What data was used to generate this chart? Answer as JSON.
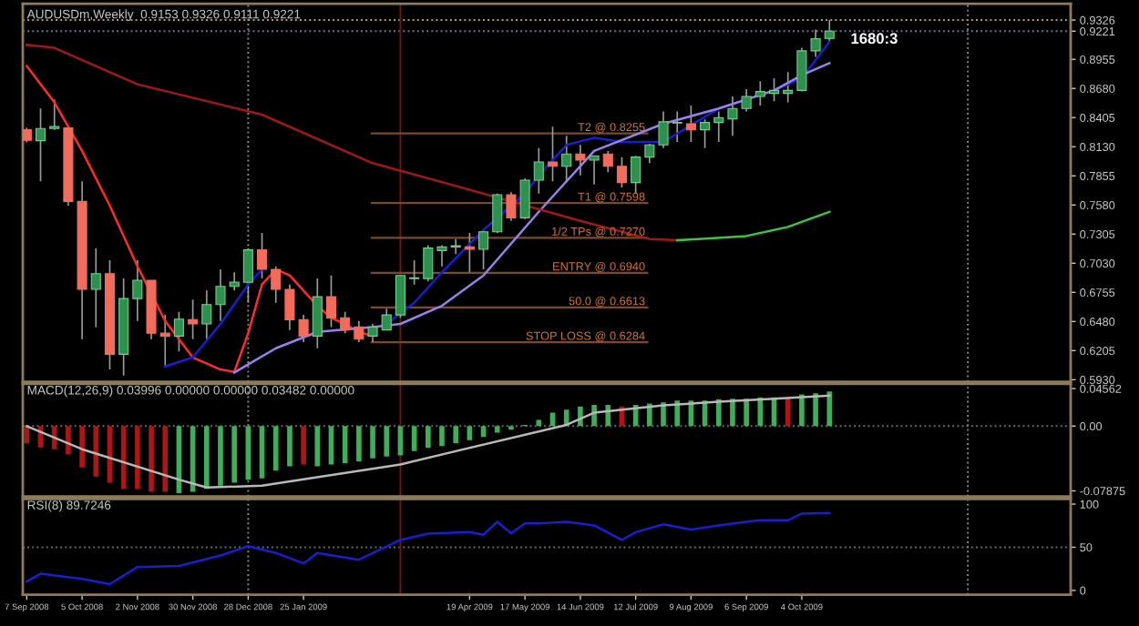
{
  "chart_data": [
    {
      "type": "candlestick",
      "title": "AUDUSDm,Weekly  0.9153 0.9326 0.9111 0.9221",
      "x": [
        "2008-09-07",
        "2008-09-14",
        "2008-09-21",
        "2008-09-28",
        "2008-10-05",
        "2008-10-12",
        "2008-10-19",
        "2008-10-26",
        "2008-11-02",
        "2008-11-09",
        "2008-11-16",
        "2008-11-23",
        "2008-11-30",
        "2008-12-07",
        "2008-12-14",
        "2008-12-21",
        "2008-12-28",
        "2009-01-04",
        "2009-01-11",
        "2009-01-18",
        "2009-01-25",
        "2009-02-01",
        "2009-02-08",
        "2009-02-15",
        "2009-02-22",
        "2009-03-01",
        "2009-03-08",
        "2009-03-15",
        "2009-03-22",
        "2009-03-29",
        "2009-04-05",
        "2009-04-12",
        "2009-04-19",
        "2009-04-26",
        "2009-05-03",
        "2009-05-10",
        "2009-05-17",
        "2009-05-24",
        "2009-05-31",
        "2009-06-07",
        "2009-06-14",
        "2009-06-21",
        "2009-06-28",
        "2009-07-05",
        "2009-07-12",
        "2009-07-19",
        "2009-07-26",
        "2009-08-02",
        "2009-08-09",
        "2009-08-16",
        "2009-08-23",
        "2009-08-30",
        "2009-09-06",
        "2009-09-13",
        "2009-09-20",
        "2009-09-27",
        "2009-10-04",
        "2009-10-11",
        "2009-10-18"
      ],
      "ohlc": [
        [
          0.829,
          0.831,
          0.817,
          0.819
        ],
        [
          0.8187,
          0.8491,
          0.7803,
          0.8302
        ],
        [
          0.8302,
          0.8577,
          0.829,
          0.832
        ],
        [
          0.8307,
          0.8307,
          0.7574,
          0.7614
        ],
        [
          0.7614,
          0.7803,
          0.6313,
          0.6783
        ],
        [
          0.6783,
          0.7173,
          0.6428,
          0.6932
        ],
        [
          0.6932,
          0.7058,
          0.6027,
          0.617
        ],
        [
          0.617,
          0.6886,
          0.5969,
          0.6697
        ],
        [
          0.6697,
          0.7058,
          0.6485,
          0.6869
        ],
        [
          0.6869,
          0.6869,
          0.6313,
          0.637
        ],
        [
          0.637,
          0.6542,
          0.6055,
          0.6342
        ],
        [
          0.6342,
          0.6571,
          0.6198,
          0.6502
        ],
        [
          0.6497,
          0.6686,
          0.6313,
          0.6457
        ],
        [
          0.6457,
          0.6772,
          0.6313,
          0.664
        ],
        [
          0.664,
          0.6972,
          0.6485,
          0.6812
        ],
        [
          0.6812,
          0.6944,
          0.6772,
          0.6852
        ],
        [
          0.685,
          0.7173,
          0.6657,
          0.7156
        ],
        [
          0.7156,
          0.7316,
          0.6886,
          0.6972
        ],
        [
          0.6972,
          0.7001,
          0.6657,
          0.6783
        ],
        [
          0.6783,
          0.6829,
          0.6399,
          0.6497
        ],
        [
          0.6497,
          0.6542,
          0.6285,
          0.6342
        ],
        [
          0.6342,
          0.6886,
          0.6227,
          0.6714
        ],
        [
          0.6714,
          0.6915,
          0.6428,
          0.6514
        ],
        [
          0.6514,
          0.6571,
          0.637,
          0.64
        ],
        [
          0.6428,
          0.6485,
          0.6285,
          0.6313
        ],
        [
          0.6342,
          0.6457,
          0.6285,
          0.6428
        ],
        [
          0.64,
          0.66,
          0.64,
          0.6542
        ],
        [
          0.6542,
          0.6915,
          0.6514,
          0.6915
        ],
        [
          0.6886,
          0.7058,
          0.6829,
          0.6892
        ],
        [
          0.6886,
          0.7201,
          0.6858,
          0.7173
        ],
        [
          0.715,
          0.7201,
          0.7001,
          0.7184
        ],
        [
          0.7184,
          0.7259,
          0.7116,
          0.7196
        ],
        [
          0.7184,
          0.7316,
          0.6944,
          0.7161
        ],
        [
          0.7161,
          0.7345,
          0.6972,
          0.7327
        ],
        [
          0.7327,
          0.7688,
          0.7316,
          0.7677
        ],
        [
          0.7677,
          0.77,
          0.743,
          0.7459
        ],
        [
          0.7459,
          0.7832,
          0.7448,
          0.7814
        ],
        [
          0.7814,
          0.8118,
          0.7688,
          0.7986
        ],
        [
          0.7986,
          0.8319,
          0.7803,
          0.7946
        ],
        [
          0.7946,
          0.8233,
          0.7803,
          0.8061
        ],
        [
          0.8061,
          0.8147,
          0.786,
          0.8004
        ],
        [
          0.8004,
          0.8044,
          0.7774,
          0.8044
        ],
        [
          0.8061,
          0.809,
          0.7889,
          0.7946
        ],
        [
          0.7946,
          0.8032,
          0.7746,
          0.7792
        ],
        [
          0.7792,
          0.8044,
          0.7688,
          0.8032
        ],
        [
          0.8032,
          0.8158,
          0.7975,
          0.8147
        ],
        [
          0.8147,
          0.8462,
          0.8118,
          0.8365
        ],
        [
          0.8353,
          0.8462,
          0.8176,
          0.8359
        ],
        [
          0.8347,
          0.8519,
          0.8176,
          0.829
        ],
        [
          0.829,
          0.8387,
          0.8118,
          0.8359
        ],
        [
          0.8359,
          0.8462,
          0.8176,
          0.8405
        ],
        [
          0.8393,
          0.8605,
          0.8233,
          0.8491
        ],
        [
          0.8491,
          0.8674,
          0.8462,
          0.8605
        ],
        [
          0.8605,
          0.8748,
          0.8519,
          0.8651
        ],
        [
          0.8634,
          0.8777,
          0.8559,
          0.8662
        ],
        [
          0.8634,
          0.8834,
          0.8548,
          0.8662
        ],
        [
          0.8662,
          0.9064,
          0.8651,
          0.9035
        ],
        [
          0.9035,
          0.9236,
          0.8978,
          0.915
        ],
        [
          0.9153,
          0.9326,
          0.9111,
          0.9221
        ]
      ],
      "series": [
        {
          "type": "line",
          "color": "#ff2a2a",
          "x": [
            "2008-09-07",
            "2008-09-21",
            "2008-10-05",
            "2008-10-19",
            "2008-11-02",
            "2008-11-16",
            "2008-11-30",
            "2008-12-14",
            "2008-12-21",
            "2008-12-28",
            "2009-01-04",
            "2009-01-11",
            "2009-01-18",
            "2009-01-25",
            "2009-02-01",
            "2009-02-08",
            "2009-02-15",
            "2009-02-22",
            "2009-03-01"
          ],
          "values": [
            0.8892,
            0.8548,
            0.809,
            0.7574,
            0.7001,
            0.6485,
            0.6141,
            0.6027,
            0.6004,
            0.637,
            0.6829,
            0.6972,
            0.6915,
            0.6772,
            0.6628,
            0.6514,
            0.6457,
            0.6382,
            0.6342
          ]
        },
        {
          "type": "line",
          "color": "#1c1cd0",
          "x": [
            "2008-11-16",
            "2008-11-30",
            "2008-12-14",
            "2008-12-28",
            "2009-01-04"
          ],
          "values": [
            0.6055,
            0.6141,
            0.6457,
            0.6829,
            0.6972
          ]
        },
        {
          "type": "line",
          "color": "#1c1cd0",
          "x": [
            "2009-03-08",
            "2009-03-22",
            "2009-04-05",
            "2009-04-26",
            "2009-05-17",
            "2009-05-24",
            "2009-06-07",
            "2009-06-21",
            "2009-07-05",
            "2009-07-26",
            "2009-08-23",
            "2009-09-20",
            "2009-10-04",
            "2009-10-18"
          ],
          "values": [
            0.6457,
            0.6657,
            0.6944,
            0.7345,
            0.7688,
            0.786,
            0.8147,
            0.8215,
            0.8175,
            0.8175,
            0.8491,
            0.8662,
            0.8777,
            0.9121
          ]
        },
        {
          "type": "line",
          "color": "#9a80ea",
          "x": [
            "2008-12-21",
            "2009-01-11",
            "2009-02-01",
            "2009-03-01",
            "2009-03-15",
            "2009-04-05",
            "2009-04-26",
            "2009-05-24",
            "2009-06-21",
            "2009-07-26",
            "2009-08-23",
            "2009-09-20",
            "2009-10-04",
            "2009-10-18"
          ],
          "values": [
            0.5998,
            0.6227,
            0.6382,
            0.6428,
            0.6457,
            0.6628,
            0.6915,
            0.7516,
            0.809,
            0.8347,
            0.8491,
            0.8662,
            0.8806,
            0.892
          ]
        },
        {
          "type": "line",
          "color": "#a01818",
          "x": [
            "2008-09-07",
            "2008-09-21",
            "2008-11-02",
            "2009-01-04",
            "2009-03-01",
            "2009-04-26",
            "2009-06-14",
            "2009-07-19",
            "2009-08-02"
          ],
          "values": [
            0.9092,
            0.9064,
            0.872,
            0.8433,
            0.7975,
            0.7688,
            0.743,
            0.7259,
            0.7247
          ]
        },
        {
          "type": "line",
          "color": "#3ec43e",
          "x": [
            "2009-08-02",
            "2009-09-06",
            "2009-09-27",
            "2009-10-18"
          ],
          "values": [
            0.7247,
            0.7287,
            0.7373,
            0.7516
          ]
        }
      ],
      "ref_lines": [
        {
          "axis": "y",
          "value": 0.9326,
          "color": "#c8a030",
          "line_style": "dotted"
        },
        {
          "axis": "y",
          "value": 0.9221,
          "color": "#6a7a88",
          "line_style": "dotted"
        },
        {
          "axis": "x",
          "value": "2008-12-28",
          "color": "#8a8a8a",
          "line_style": "dotted"
        },
        {
          "axis": "x",
          "value": "2009-12-27",
          "color": "#8a8a8a",
          "line_style": "dotted"
        },
        {
          "axis": "x",
          "value": "2009-03-15",
          "color": "#7a1010",
          "line_style": "solid"
        },
        {
          "axis": "y",
          "value": 0.8255,
          "label": "T2 @ 0.8255",
          "color": "#7a4a2a",
          "line_style": "solid"
        },
        {
          "axis": "y",
          "value": 0.7598,
          "label": "T1 @ 0.7598",
          "color": "#7a4a2a",
          "line_style": "solid"
        },
        {
          "axis": "y",
          "value": 0.727,
          "label": "1/2 TPs @ 0.7270",
          "color": "#7a4a2a",
          "line_style": "solid"
        },
        {
          "axis": "y",
          "value": 0.694,
          "label": "ENTRY @ 0.6940",
          "color": "#7a4a2a",
          "line_style": "solid"
        },
        {
          "axis": "y",
          "value": 0.6613,
          "label": "50.0 @ 0.6613",
          "color": "#7a4a2a",
          "line_style": "solid"
        },
        {
          "axis": "y",
          "value": 0.6284,
          "label": "STOP LOSS @ 0.6284",
          "color": "#7a4a2a",
          "line_style": "solid"
        }
      ],
      "annotations": [
        "1680:3"
      ],
      "xlim": [
        "2008-09-05",
        "2010-02-17"
      ],
      "ylim": [
        0.591,
        0.948
      ],
      "yticks": [
        0.9326,
        0.9221,
        0.8955,
        {
          "value": 0.868,
          "label": "0.8680"
        },
        0.8405,
        {
          "value": 0.813,
          "label": "0.8130"
        },
        0.7855,
        {
          "value": 0.758,
          "label": "0.7580"
        },
        0.7305,
        {
          "value": 0.703,
          "label": "0.7030"
        },
        0.6755,
        {
          "value": 0.648,
          "label": "0.6480"
        },
        0.6205,
        {
          "value": 0.593,
          "label": "0.5930"
        }
      ],
      "tick_labels": "y"
    },
    {
      "type": "bar",
      "title": "MACD(12,26,9) 0.03996 0.00000 0.00000 0.03482 0.00000",
      "x": [
        "2008-09-07",
        "2008-09-14",
        "2008-09-21",
        "2008-09-28",
        "2008-10-05",
        "2008-10-12",
        "2008-10-19",
        "2008-10-26",
        "2008-11-02",
        "2008-11-09",
        "2008-11-16",
        "2008-11-23",
        "2008-11-30",
        "2008-12-07",
        "2008-12-14",
        "2008-12-21",
        "2008-12-28",
        "2009-01-04",
        "2009-01-11",
        "2009-01-18",
        "2009-01-25",
        "2009-02-01",
        "2009-02-08",
        "2009-02-15",
        "2009-02-22",
        "2009-03-01",
        "2009-03-08",
        "2009-03-15",
        "2009-03-22",
        "2009-03-29",
        "2009-04-05",
        "2009-04-12",
        "2009-04-19",
        "2009-04-26",
        "2009-05-03",
        "2009-05-10",
        "2009-05-17",
        "2009-05-24",
        "2009-05-31",
        "2009-06-07",
        "2009-06-14",
        "2009-06-21",
        "2009-06-28",
        "2009-07-05",
        "2009-07-12",
        "2009-07-19",
        "2009-07-26",
        "2009-08-02",
        "2009-08-09",
        "2009-08-16",
        "2009-08-23",
        "2009-08-30",
        "2009-09-06",
        "2009-09-13",
        "2009-09-20",
        "2009-09-27",
        "2009-10-04",
        "2009-10-11",
        "2009-10-18"
      ],
      "values": [
        -0.0207,
        -0.0259,
        -0.0281,
        -0.034,
        -0.0503,
        -0.0614,
        -0.0688,
        -0.0762,
        -0.0762,
        -0.0799,
        -0.0799,
        -0.0814,
        -0.0799,
        -0.0762,
        -0.0725,
        -0.0688,
        -0.0651,
        -0.0636,
        -0.054,
        -0.0488,
        -0.0466,
        -0.0488,
        -0.0466,
        -0.0451,
        -0.0429,
        -0.0392,
        -0.037,
        -0.0355,
        -0.0303,
        -0.0266,
        -0.0244,
        -0.0207,
        -0.017,
        -0.0133,
        -0.0081,
        -0.0044,
        0.0015,
        0.0074,
        0.0163,
        0.02,
        0.0237,
        0.0259,
        0.0259,
        0.0237,
        0.0259,
        0.0274,
        0.0289,
        0.0311,
        0.0311,
        0.0311,
        0.0326,
        0.0333,
        0.0333,
        0.0348,
        0.0348,
        0.0348,
        0.0385,
        0.04,
        0.0422
      ],
      "colors": [
        "#b01414",
        "#b01414",
        "#b01414",
        "#b01414",
        "#b01414",
        "#b01414",
        "#b01414",
        "#b01414",
        "#b01414",
        "#b01414",
        "#b01414",
        "#3fae5a",
        "#3fae5a",
        "#3fae5a",
        "#3fae5a",
        "#3fae5a",
        "#3fae5a",
        "#3fae5a",
        "#3fae5a",
        "#3fae5a",
        "#b01414",
        "#3fae5a",
        "#3fae5a",
        "#3fae5a",
        "#3fae5a",
        "#3fae5a",
        "#3fae5a",
        "#3fae5a",
        "#3fae5a",
        "#3fae5a",
        "#3fae5a",
        "#3fae5a",
        "#3fae5a",
        "#3fae5a",
        "#3fae5a",
        "#3fae5a",
        "#3fae5a",
        "#3fae5a",
        "#3fae5a",
        "#3fae5a",
        "#3fae5a",
        "#3fae5a",
        "#3fae5a",
        "#b01414",
        "#3fae5a",
        "#3fae5a",
        "#3fae5a",
        "#3fae5a",
        "#3fae5a",
        "#3fae5a",
        "#3fae5a",
        "#3fae5a",
        "#3fae5a",
        "#3fae5a",
        "#3fae5a",
        "#b01414",
        "#3fae5a",
        "#3fae5a",
        "#3fae5a"
      ],
      "series": [
        {
          "type": "line",
          "color": "#b8b8b8",
          "x": [
            "2008-09-07",
            "2008-10-05",
            "2008-11-23",
            "2008-12-07",
            "2009-01-04",
            "2009-03-15",
            "2009-06-07",
            "2009-06-21",
            "2009-07-26",
            "2009-08-23",
            "2009-09-20",
            "2009-10-18"
          ],
          "values": [
            0.0,
            -0.0281,
            -0.0651,
            -0.0747,
            -0.0725,
            -0.0466,
            0.0015,
            0.0163,
            0.0252,
            0.0296,
            0.0333,
            0.037
          ]
        }
      ],
      "ref_lines": [
        {
          "axis": "y",
          "value": 0,
          "color": "#6a6a6a",
          "line_style": "dotted"
        },
        {
          "axis": "x",
          "value": "2008-12-28",
          "color": "#8a8a8a",
          "line_style": "dotted"
        },
        {
          "axis": "x",
          "value": "2009-12-27",
          "color": "#8a8a8a",
          "line_style": "dotted"
        },
        {
          "axis": "x",
          "value": "2009-03-15",
          "color": "#7a1010",
          "line_style": "solid"
        }
      ],
      "xlim": [
        "2008-09-05",
        "2010-02-17"
      ],
      "ylim": [
        -0.0855,
        0.0515
      ],
      "yticks": [
        0.04562,
        {
          "value": 0,
          "label": "0.00"
        },
        -0.07875
      ],
      "tick_labels": "y"
    },
    {
      "type": "line",
      "title": "RSI(8) 89.7246",
      "series": [
        {
          "color": "#1c1cd0",
          "x": [
            "2008-09-07",
            "2008-09-14",
            "2008-10-05",
            "2008-10-19",
            "2008-11-02",
            "2008-11-23",
            "2008-12-14",
            "2008-12-28",
            "2009-01-11",
            "2009-01-25",
            "2009-02-01",
            "2009-02-22",
            "2009-03-15",
            "2009-03-29",
            "2009-04-19",
            "2009-04-26",
            "2009-05-03",
            "2009-05-10",
            "2009-05-17",
            "2009-05-24",
            "2009-06-07",
            "2009-06-21",
            "2009-07-05",
            "2009-07-12",
            "2009-07-26",
            "2009-08-09",
            "2009-08-23",
            "2009-09-06",
            "2009-09-13",
            "2009-09-27",
            "2009-10-04",
            "2009-10-18"
          ],
          "values": [
            10.2,
            19.3,
            13.3,
            7.2,
            27.1,
            28.3,
            40.4,
            51.2,
            43.4,
            31.3,
            43.4,
            35.5,
            58.4,
            65.7,
            67.5,
            64.5,
            79.5,
            66.3,
            77.7,
            77.7,
            79.5,
            75.3,
            58.4,
            67.5,
            76.5,
            70.5,
            75.3,
            79.5,
            81.3,
            81.3,
            89.0,
            89.7
          ]
        }
      ],
      "ref_lines": [
        {
          "axis": "y",
          "value": 50,
          "color": "#6a6a6a",
          "line_style": "dotted"
        },
        {
          "axis": "x",
          "value": "2008-12-28",
          "color": "#8a8a8a",
          "line_style": "dotted"
        },
        {
          "axis": "x",
          "value": "2009-12-27",
          "color": "#8a8a8a",
          "line_style": "dotted"
        },
        {
          "axis": "x",
          "value": "2009-03-15",
          "color": "#7a1010",
          "line_style": "solid"
        }
      ],
      "xlim": [
        "2008-09-05",
        "2010-02-17"
      ],
      "ylim": [
        -5,
        106
      ],
      "yticks": [
        100,
        50,
        0
      ],
      "xticks": [
        {
          "value": "2008-09-07",
          "label": "7 Sep 2008"
        },
        {
          "value": "2008-10-05",
          "label": "5 Oct 2008"
        },
        {
          "value": "2008-11-02",
          "label": "2 Nov 2008"
        },
        {
          "value": "2008-11-30",
          "label": "30 Nov 2008"
        },
        {
          "value": "2008-12-28",
          "label": "28 Dec 2008"
        },
        {
          "value": "2009-01-25",
          "label": "25 Jan 2009"
        },
        {
          "value": "2009-04-19",
          "label": "19 Apr 2009"
        },
        {
          "value": "2009-05-17",
          "label": "17 May 2009"
        },
        {
          "value": "2009-06-14",
          "label": "14 Jun 2009"
        },
        {
          "value": "2009-07-12",
          "label": "12 Jul 2009"
        },
        {
          "value": "2009-08-09",
          "label": "9 Aug 2009"
        },
        {
          "value": "2009-09-06",
          "label": "6 Sep 2009"
        },
        {
          "value": "2009-10-04",
          "label": "4 Oct 2009"
        }
      ]
    }
  ]
}
